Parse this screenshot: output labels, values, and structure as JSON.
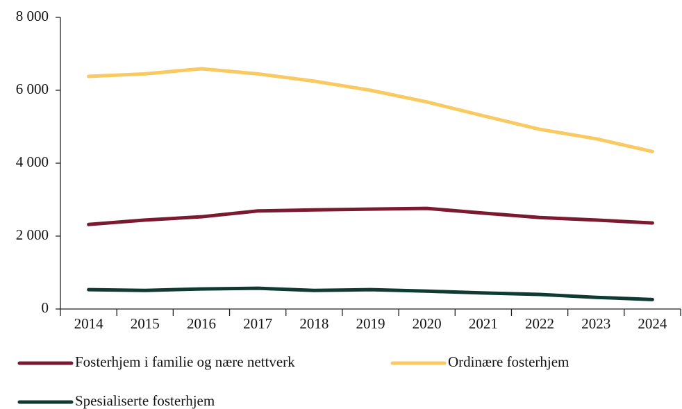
{
  "chart_data": {
    "type": "line",
    "categories": [
      "2014",
      "2015",
      "2016",
      "2017",
      "2018",
      "2019",
      "2020",
      "2021",
      "2022",
      "2023",
      "2024"
    ],
    "series": [
      {
        "name": "Fosterhjem i familie og nære nettverk",
        "color": "#7a1a30",
        "values": [
          2320,
          2440,
          2530,
          2690,
          2720,
          2740,
          2760,
          2630,
          2510,
          2440,
          2360
        ]
      },
      {
        "name": "Ordinære fosterhjem",
        "color": "#f9c962",
        "values": [
          6380,
          6450,
          6590,
          6450,
          6250,
          6000,
          5680,
          5300,
          4930,
          4670,
          4320
        ]
      },
      {
        "name": "Spesialiserte fosterhjem",
        "color": "#0f3a32",
        "values": [
          530,
          510,
          550,
          570,
          510,
          530,
          490,
          440,
          400,
          320,
          260
        ]
      }
    ],
    "ylim": [
      0,
      8000
    ],
    "yticks": [
      0,
      {
        "value": 2000,
        "label": "2 000"
      },
      {
        "value": 4000,
        "label": "4 000"
      },
      {
        "value": 6000,
        "label": "6 000"
      },
      {
        "value": 8000,
        "label": "8 000"
      }
    ]
  }
}
